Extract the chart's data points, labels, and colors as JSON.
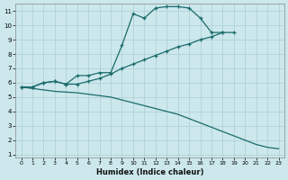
{
  "xlabel": "Humidex (Indice chaleur)",
  "bg_color": "#cce8ec",
  "grid_color": "#aacdd4",
  "line_color": "#1a6b6b",
  "xlim": [
    -0.5,
    23.5
  ],
  "ylim": [
    0.8,
    11.5
  ],
  "xticks": [
    0,
    1,
    2,
    3,
    4,
    5,
    6,
    7,
    8,
    9,
    10,
    11,
    12,
    13,
    14,
    15,
    16,
    17,
    18,
    19,
    20,
    21,
    22,
    23
  ],
  "yticks": [
    1,
    2,
    3,
    4,
    5,
    6,
    7,
    8,
    9,
    10,
    11
  ],
  "series1_x": [
    0,
    1,
    2,
    3,
    4,
    5,
    6,
    7,
    8,
    9,
    10,
    11,
    12,
    13,
    14,
    15,
    16,
    17,
    18
  ],
  "series1_y": [
    5.7,
    5.7,
    6.0,
    6.1,
    5.9,
    6.5,
    6.5,
    6.7,
    6.7,
    8.6,
    10.8,
    10.5,
    11.2,
    11.3,
    11.3,
    11.2,
    10.5,
    9.5,
    9.5
  ],
  "series2_x": [
    0,
    1,
    2,
    3,
    4,
    5,
    6,
    7,
    8,
    9,
    10,
    11,
    12,
    13,
    14,
    15,
    16,
    17,
    18,
    19
  ],
  "series2_y": [
    5.7,
    5.7,
    6.0,
    6.1,
    5.9,
    5.9,
    6.1,
    6.3,
    6.6,
    7.0,
    7.3,
    7.6,
    7.9,
    8.2,
    8.5,
    8.7,
    9.0,
    9.2,
    9.5,
    9.5
  ],
  "series3_x": [
    0,
    1,
    2,
    3,
    4,
    5,
    6,
    7,
    8,
    9,
    10,
    11,
    12,
    13,
    14,
    15,
    16,
    17,
    18,
    19,
    20,
    21,
    22,
    23
  ],
  "series3_y": [
    5.7,
    5.6,
    5.5,
    5.4,
    5.35,
    5.3,
    5.2,
    5.1,
    5.0,
    4.8,
    4.6,
    4.4,
    4.2,
    4.0,
    3.8,
    3.5,
    3.2,
    2.9,
    2.6,
    2.3,
    2.0,
    1.7,
    1.5,
    1.4
  ]
}
